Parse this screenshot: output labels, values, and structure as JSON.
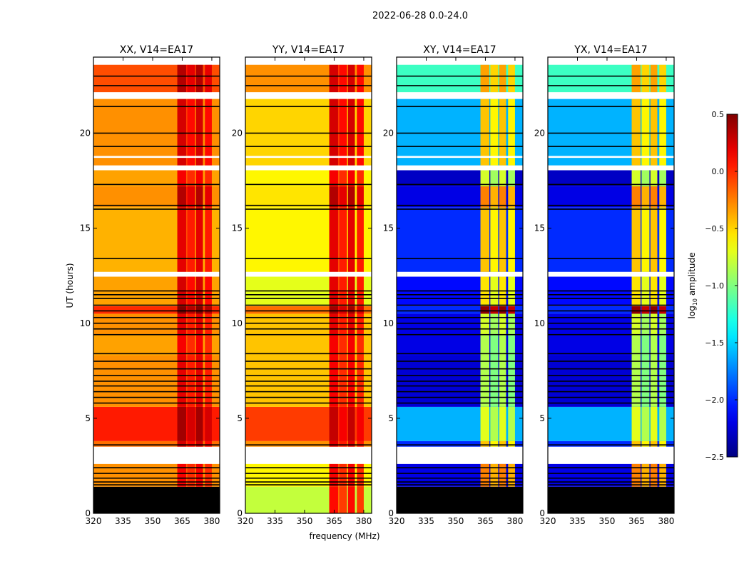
{
  "figure": {
    "suptitle": "2022-06-28 0.0-24.0",
    "xlabel": "frequency (MHz)",
    "ylabel": "UT (hours)"
  },
  "chart_data": {
    "type": "heatmap",
    "xlim": [
      320,
      384
    ],
    "ylim": [
      0,
      24
    ],
    "xticks": [
      320,
      335,
      350,
      365,
      380
    ],
    "yticks": [
      0,
      5,
      10,
      15,
      20
    ],
    "rfi_columns_mhz": [
      [
        362.5,
        367
      ],
      [
        367.5,
        371.5
      ],
      [
        372,
        375.5
      ],
      [
        376.5,
        380
      ]
    ],
    "flag_lines_hours": [
      1.5,
      1.65,
      1.85,
      2.1,
      2.4,
      3.6,
      5.8,
      6.1,
      6.4,
      6.7,
      6.95,
      7.25,
      7.6,
      8.0,
      8.4,
      9.4,
      9.7,
      10.0,
      10.3,
      10.65,
      10.95,
      11.3,
      11.5,
      11.7,
      13.4,
      16.0,
      16.2,
      17.3,
      19.3,
      20.0,
      21.4,
      22.5,
      23.0
    ],
    "gap_hours": [
      [
        2.6,
        3.5
      ],
      [
        12.45,
        12.7
      ],
      [
        18.05,
        18.3
      ],
      [
        18.7,
        18.8
      ],
      [
        21.8,
        22.15
      ],
      [
        23.6,
        24.0
      ]
    ],
    "panels": [
      {
        "title": "XX, V14=EA17",
        "cross": false,
        "segments": [
          [
            0,
            1.4,
            null,
            null
          ],
          [
            1.4,
            2.6,
            -0.3,
            0.1
          ],
          [
            3.5,
            3.8,
            -0.2,
            0.2
          ],
          [
            3.8,
            5.6,
            0.05,
            0.35
          ],
          [
            5.6,
            8.3,
            -0.3,
            0.15
          ],
          [
            8.3,
            9.4,
            -0.35,
            0.1
          ],
          [
            9.4,
            10.5,
            -0.3,
            0.15
          ],
          [
            10.5,
            10.9,
            0.0,
            0.45
          ],
          [
            10.9,
            12.45,
            -0.35,
            0.2
          ],
          [
            12.7,
            16.1,
            -0.4,
            0.15
          ],
          [
            16.1,
            17.2,
            -0.3,
            0.3
          ],
          [
            17.2,
            18.05,
            -0.35,
            0.1
          ],
          [
            18.3,
            21.8,
            -0.3,
            0.2
          ],
          [
            22.15,
            23.6,
            -0.1,
            0.3
          ]
        ]
      },
      {
        "title": "YY, V14=EA17",
        "cross": false,
        "segments": [
          [
            0,
            1.4,
            -0.8,
            0.05
          ],
          [
            1.4,
            2.6,
            -0.6,
            0.1
          ],
          [
            3.5,
            3.8,
            -0.3,
            0.15
          ],
          [
            3.8,
            5.6,
            -0.05,
            0.25
          ],
          [
            5.6,
            8.3,
            -0.45,
            0.1
          ],
          [
            8.3,
            9.4,
            -0.45,
            0.1
          ],
          [
            9.4,
            10.5,
            -0.45,
            0.15
          ],
          [
            10.5,
            10.9,
            -0.2,
            0.35
          ],
          [
            10.9,
            12.45,
            -0.7,
            0.15
          ],
          [
            12.7,
            16.1,
            -0.6,
            0.15
          ],
          [
            16.1,
            17.2,
            -0.55,
            0.3
          ],
          [
            17.2,
            18.05,
            -0.6,
            0.1
          ],
          [
            18.3,
            21.8,
            -0.5,
            0.2
          ],
          [
            22.15,
            23.6,
            -0.3,
            0.2
          ]
        ]
      },
      {
        "title": "XY, V14=EA17",
        "cross": true,
        "segments": [
          [
            0,
            1.4,
            null,
            null
          ],
          [
            1.4,
            2.6,
            -2.2,
            -0.3
          ],
          [
            3.5,
            3.8,
            -2.0,
            -0.5
          ],
          [
            3.8,
            5.6,
            -1.6,
            -0.75
          ],
          [
            5.6,
            8.3,
            -2.25,
            -0.9
          ],
          [
            8.3,
            9.4,
            -2.2,
            -0.9
          ],
          [
            9.4,
            10.5,
            -2.2,
            -0.8
          ],
          [
            10.5,
            10.9,
            -2.0,
            0.4
          ],
          [
            10.9,
            12.45,
            -2.1,
            -0.6
          ],
          [
            12.7,
            16.1,
            -2.0,
            -0.5
          ],
          [
            16.1,
            17.2,
            -2.2,
            -0.3
          ],
          [
            17.2,
            18.05,
            -2.3,
            -0.8
          ],
          [
            18.3,
            21.8,
            -1.6,
            -0.5
          ],
          [
            22.15,
            23.6,
            -1.2,
            -0.4
          ]
        ]
      },
      {
        "title": "YX, V14=EA17",
        "cross": true,
        "segments": [
          [
            0,
            1.4,
            null,
            null
          ],
          [
            1.4,
            2.6,
            -2.2,
            -0.3
          ],
          [
            3.5,
            3.8,
            -2.0,
            -0.5
          ],
          [
            3.8,
            5.6,
            -1.6,
            -0.75
          ],
          [
            5.6,
            8.3,
            -2.25,
            -0.9
          ],
          [
            8.3,
            9.4,
            -2.2,
            -0.9
          ],
          [
            9.4,
            10.5,
            -2.2,
            -0.8
          ],
          [
            10.5,
            10.9,
            -2.0,
            0.4
          ],
          [
            10.9,
            12.45,
            -2.1,
            -0.6
          ],
          [
            12.7,
            16.1,
            -2.0,
            -0.5
          ],
          [
            16.1,
            17.2,
            -2.2,
            -0.3
          ],
          [
            17.2,
            18.05,
            -2.3,
            -0.8
          ],
          [
            18.3,
            21.8,
            -1.6,
            -0.5
          ],
          [
            22.15,
            23.6,
            -1.2,
            -0.4
          ]
        ]
      }
    ],
    "colorbar": {
      "label": "log10 amplitude",
      "label_main": "log",
      "label_sub": "10",
      "label_rest": " amplitude",
      "range": [
        -2.5,
        0.5
      ],
      "ticks": [
        0.5,
        0.0,
        -0.5,
        -1.0,
        -1.5,
        -2.0,
        -2.5
      ],
      "tick_labels": [
        "0.5",
        "0.0",
        "−0.5",
        "−1.0",
        "−1.5",
        "−2.0",
        "−2.5"
      ],
      "colormap": "jet"
    }
  }
}
